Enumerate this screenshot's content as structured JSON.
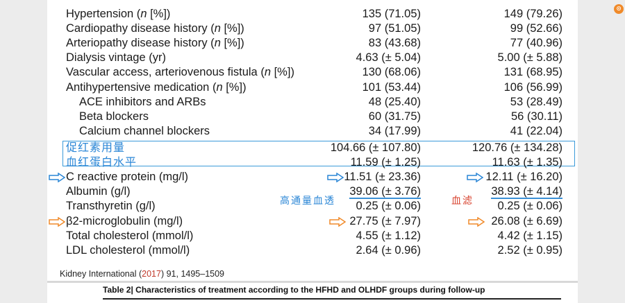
{
  "rows": [
    {
      "label": "Hypertension (n [%])",
      "v1": "135 (71.05)",
      "v2": "149 (79.26)"
    },
    {
      "label": "Cardiopathy disease history (n [%])",
      "v1": "97 (51.05)",
      "v2": "99 (52.66)"
    },
    {
      "label": "Arteriopathy disease history (n [%])",
      "v1": "83 (43.68)",
      "v2": "77 (40.96)"
    },
    {
      "label": "Dialysis vintage (yr)",
      "v1": "4.63 (± 5.04)",
      "v2": "5.00 (± 5.88)"
    },
    {
      "label": "Vascular access, arteriovenous fistula (n [%])",
      "v1": "130 (68.06)",
      "v2": "131 (68.95)"
    },
    {
      "label": "Antihypertensive medication (n [%])",
      "v1": "101 (53.44)",
      "v2": "106 (56.99)"
    },
    {
      "label": "ACE inhibitors and ARBs",
      "v1": "48 (25.40)",
      "v2": "53 (28.49)"
    },
    {
      "label": "Beta blockers",
      "v1": "60 (31.75)",
      "v2": "56 (30.11)"
    },
    {
      "label": "Calcium channel blockers",
      "v1": "34 (17.99)",
      "v2": "41 (22.04)"
    },
    {
      "label": "",
      "v1": "104.66 (± 107.80)",
      "v2": "120.76 (± 134.28)"
    },
    {
      "label": "",
      "v1": "11.59 (± 1.25)",
      "v2": "11.63 (± 1.35)"
    },
    {
      "label": "C reactive protein (mg/l)",
      "v1": "11.51 (± 23.36)",
      "v2": "12.11 (± 16.20)"
    },
    {
      "label": "Albumin (g/l)",
      "v1": "39.06 (± 3.76)",
      "v2": "38.93 (± 4.14)"
    },
    {
      "label": "Transthyretin (g/l)",
      "v1": "0.25 (± 0.06)",
      "v2": "0.25 (± 0.06)"
    },
    {
      "label": "β2-microglobulin (mg/l)",
      "v1": "27.75 (± 7.97)",
      "v2": "26.08 (± 6.69)"
    },
    {
      "label": "Total cholesterol (mmol/l)",
      "v1": "4.55 (± 1.12)",
      "v2": "4.42 (± 1.15)"
    },
    {
      "label": "LDL cholesterol (mmol/l)",
      "v1": "2.64 (± 0.96)",
      "v2": "2.52 (± 0.95)"
    }
  ],
  "annotations": {
    "epo_note": "促红素用量",
    "hb_note": "血红蛋白水平",
    "hfhd_note": "高通量血透",
    "hdf_note": "血滤",
    "colors": {
      "blue": "#2a86d6",
      "orange": "#f08a2a",
      "red": "#d8432f"
    }
  },
  "footer": {
    "journal": "Kidney International (",
    "year": "2017",
    "citation": ") 91, 1495–1509"
  },
  "table2_caption": "Table 2| Characteristics of treatment according to the HFHD and OLHDF groups during follow-up"
}
